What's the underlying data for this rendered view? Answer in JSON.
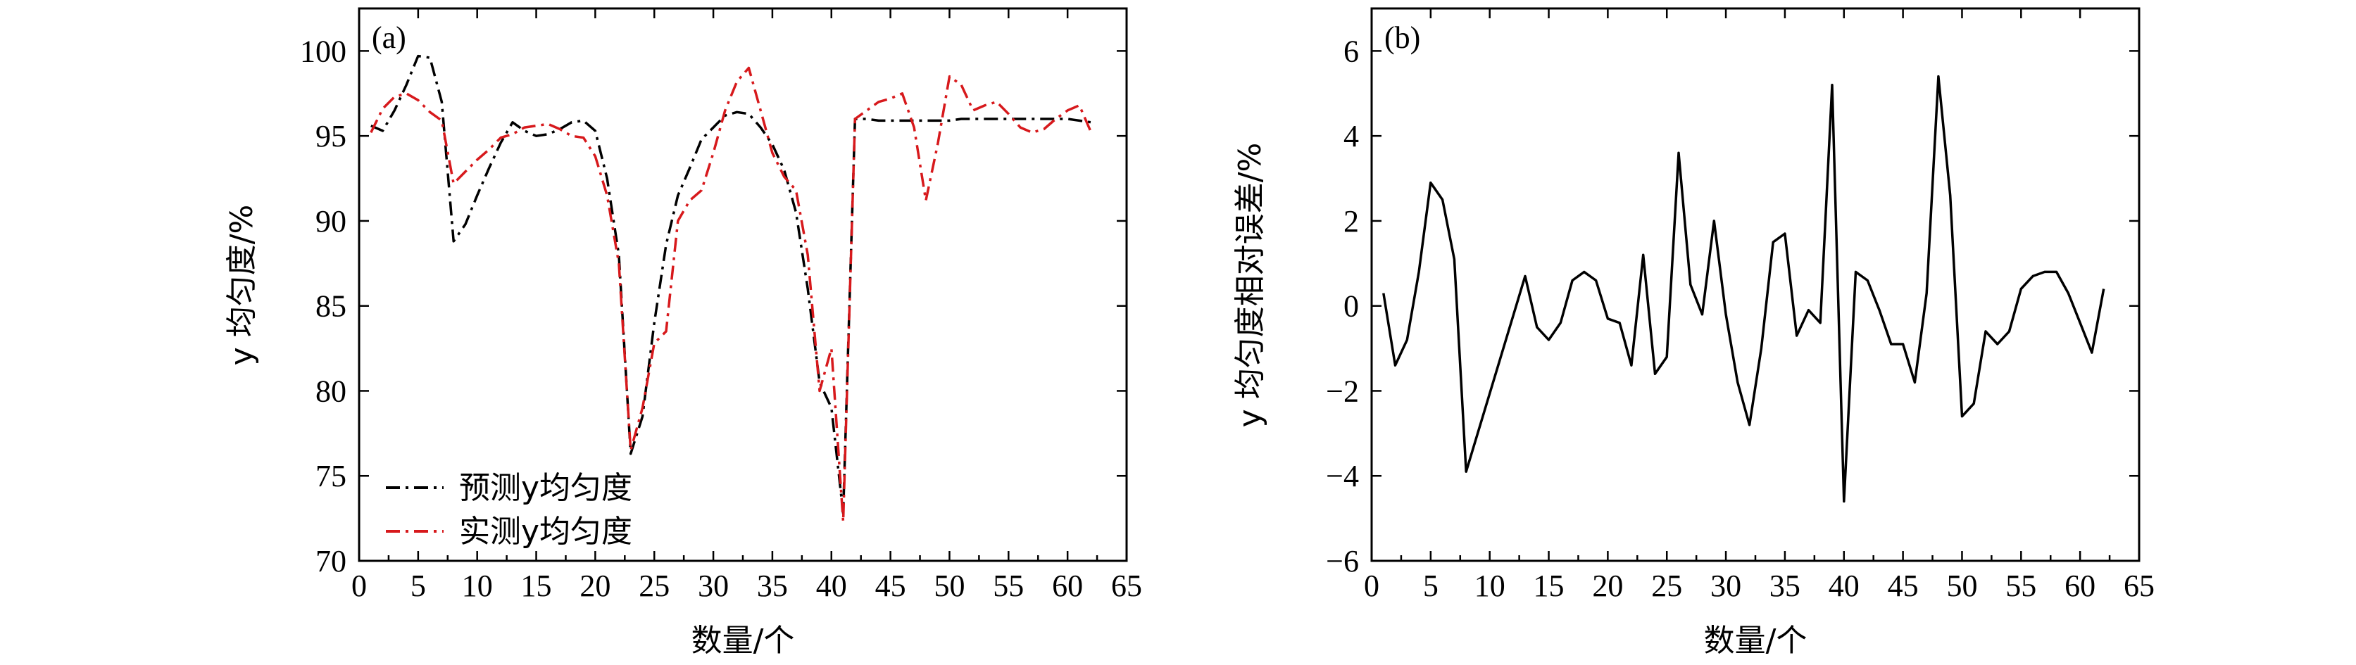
{
  "chart_data": [
    {
      "type": "line",
      "panel_label": "(a)",
      "xlabel": "数量/个",
      "ylabel": "y 均匀度/%",
      "xlim": [
        0,
        65
      ],
      "ylim": [
        70,
        102.5
      ],
      "xticks": [
        "0",
        "5",
        "10",
        "15",
        "20",
        "25",
        "30",
        "35",
        "40",
        "45",
        "50",
        "55",
        "60",
        "65"
      ],
      "yticks": [
        "70",
        "75",
        "80",
        "85",
        "90",
        "95",
        "100"
      ],
      "legend_position": "bottom-left",
      "series": [
        {
          "name": "预测y均匀度",
          "color": "#000000",
          "dash": "dashdot",
          "x": [
            1,
            2,
            3,
            4,
            5,
            6,
            7,
            8,
            9,
            10,
            11,
            12,
            13,
            14,
            15,
            16,
            17,
            18,
            19,
            20,
            21,
            22,
            23,
            24,
            25,
            26,
            27,
            28,
            29,
            30,
            31,
            32,
            33,
            34,
            35,
            36,
            37,
            38,
            39,
            40,
            41,
            42,
            43,
            44,
            45,
            46,
            47,
            48,
            49,
            50,
            51,
            52,
            53,
            54,
            55,
            56,
            57,
            58,
            59,
            60,
            61,
            62
          ],
          "values": [
            95.6,
            95.3,
            96.5,
            98,
            99.7,
            99.6,
            97,
            88.8,
            89.8,
            91.5,
            93.1,
            94.6,
            95.8,
            95.3,
            95,
            95.1,
            95.4,
            95.8,
            95.9,
            95.3,
            92.5,
            88,
            76.3,
            78.5,
            84,
            88.6,
            91.5,
            93.1,
            94.8,
            95.5,
            96.2,
            96.4,
            96.3,
            95.5,
            94.5,
            93,
            90.5,
            86,
            80.5,
            79,
            72.8,
            96,
            96,
            95.9,
            95.9,
            95.9,
            95.9,
            95.9,
            95.9,
            95.9,
            96,
            96,
            96,
            96,
            96,
            96,
            96,
            96,
            96,
            96,
            95.9,
            95.8
          ]
        },
        {
          "name": "实测y均匀度",
          "color": "#d7191c",
          "dash": "dashdot",
          "x": [
            1,
            2,
            3,
            4,
            5,
            6,
            7,
            8,
            9,
            10,
            11,
            12,
            13,
            14,
            15,
            16,
            17,
            18,
            19,
            20,
            21,
            22,
            23,
            24,
            25,
            26,
            27,
            28,
            29,
            30,
            31,
            32,
            33,
            34,
            35,
            36,
            37,
            38,
            39,
            40,
            41,
            42,
            43,
            44,
            45,
            46,
            47,
            48,
            49,
            50,
            51,
            52,
            53,
            54,
            55,
            56,
            57,
            58,
            59,
            60,
            61,
            62
          ],
          "values": [
            95.2,
            96.6,
            97.3,
            97.5,
            97.1,
            96.4,
            95.9,
            92.2,
            92.9,
            93.6,
            94.2,
            94.9,
            95.1,
            95.5,
            95.6,
            95.7,
            95.4,
            95,
            94.9,
            93.8,
            91.5,
            87.5,
            76.5,
            79,
            82.8,
            83.5,
            90,
            91.2,
            91.8,
            94,
            96.5,
            98.2,
            99,
            96.5,
            94,
            92.6,
            91.8,
            88,
            80,
            82.5,
            72.3,
            96,
            96.5,
            97,
            97.2,
            97.5,
            95.5,
            91.2,
            94.5,
            98.5,
            98,
            96.5,
            96.8,
            97,
            96.3,
            95.5,
            95.2,
            95.4,
            96,
            96.5,
            96.8,
            95.2
          ]
        }
      ]
    },
    {
      "type": "line",
      "panel_label": "(b)",
      "xlabel": "数量/个",
      "ylabel": "y 均匀度相对误差/%",
      "xlim": [
        0,
        65
      ],
      "ylim": [
        -6,
        7
      ],
      "xticks": [
        "0",
        "5",
        "10",
        "15",
        "20",
        "25",
        "30",
        "35",
        "40",
        "45",
        "50",
        "55",
        "60",
        "65"
      ],
      "yticks": [
        "−6",
        "−4",
        "−2",
        "0",
        "2",
        "4",
        "6"
      ],
      "series": [
        {
          "name": "y 均匀度相对误差",
          "color": "#000000",
          "dash": "solid",
          "x": [
            1,
            2,
            3,
            4,
            5,
            6,
            7,
            8,
            13,
            14,
            15,
            16,
            17,
            18,
            19,
            20,
            21,
            22,
            23,
            24,
            25,
            26,
            27,
            28,
            29,
            30,
            31,
            32,
            33,
            34,
            35,
            36,
            37,
            38,
            39,
            40,
            41,
            42,
            43,
            44,
            45,
            46,
            47,
            48,
            49,
            50,
            51,
            52,
            53,
            54,
            55,
            56,
            57,
            58,
            59,
            60,
            61,
            62
          ],
          "values": [
            0.3,
            -1.4,
            -0.8,
            0.8,
            2.9,
            2.5,
            1.1,
            -3.9,
            0.7,
            -0.5,
            -0.8,
            -0.4,
            0.6,
            0.8,
            0.6,
            -0.3,
            -0.4,
            -1.4,
            1.2,
            -1.6,
            -1.2,
            3.6,
            0.5,
            -0.2,
            2,
            -0.2,
            -1.8,
            -2.8,
            -1,
            1.5,
            1.7,
            -0.7,
            -0.1,
            -0.4,
            5.2,
            -4.6,
            0.8,
            0.6,
            -0.1,
            -0.9,
            -0.9,
            -1.8,
            0.3,
            5.4,
            2.6,
            -2.6,
            -2.3,
            -0.6,
            -0.9,
            -0.6,
            0.4,
            0.7,
            0.8,
            0.8,
            0.3,
            -0.4,
            -1.1,
            0.4
          ]
        }
      ]
    }
  ]
}
